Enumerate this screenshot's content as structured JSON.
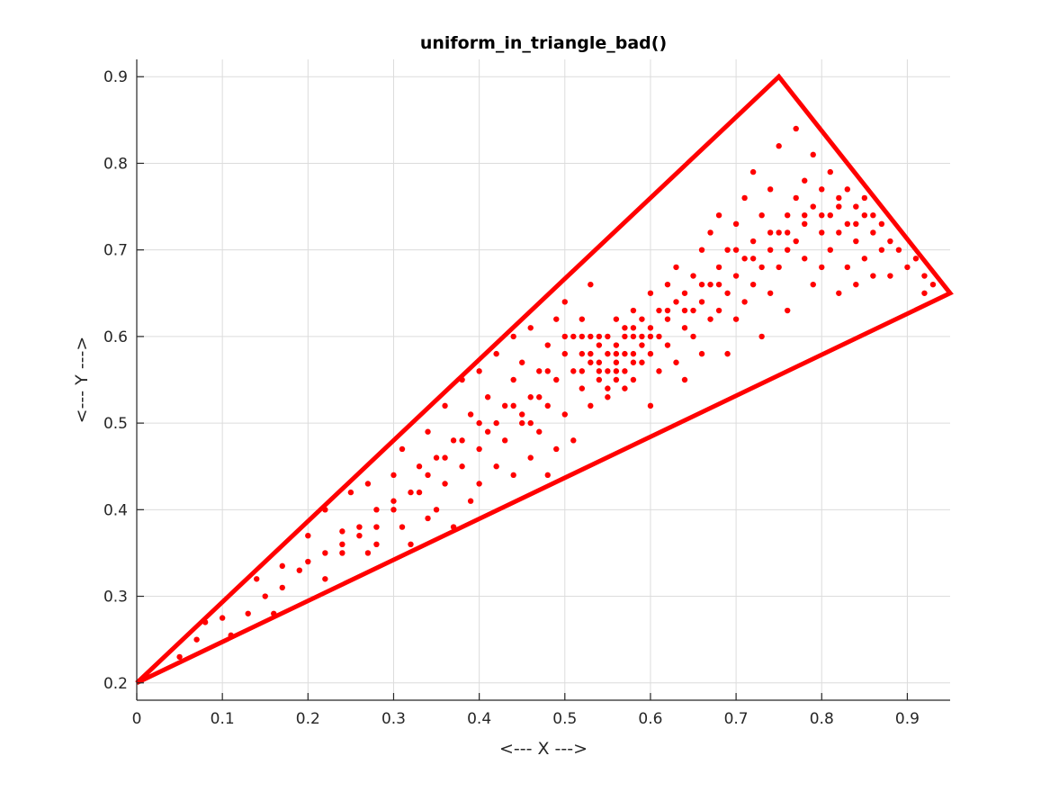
{
  "chart_data": {
    "type": "scatter",
    "title": "uniform_in_triangle_bad()",
    "xlabel": "<--- X --->",
    "ylabel": "<--- Y --->",
    "xlim": [
      0,
      0.95
    ],
    "ylim": [
      0.18,
      0.92
    ],
    "xticks": [
      0,
      0.1,
      0.2,
      0.3,
      0.4,
      0.5,
      0.6,
      0.7,
      0.8,
      0.9
    ],
    "yticks": [
      0.2,
      0.3,
      0.4,
      0.5,
      0.6,
      0.7,
      0.8,
      0.9
    ],
    "xtick_labels": [
      "0",
      "0.1",
      "0.2",
      "0.3",
      "0.4",
      "0.5",
      "0.6",
      "0.7",
      "0.8",
      "0.9"
    ],
    "ytick_labels": [
      "0.2",
      "0.3",
      "0.4",
      "0.5",
      "0.6",
      "0.7",
      "0.8",
      "0.9"
    ],
    "grid": true,
    "color": "#ff0000",
    "triangle": [
      [
        0,
        0.2
      ],
      [
        0.75,
        0.9
      ],
      [
        0.95,
        0.65
      ]
    ],
    "points": [
      [
        0.05,
        0.23
      ],
      [
        0.08,
        0.27
      ],
      [
        0.1,
        0.275
      ],
      [
        0.11,
        0.255
      ],
      [
        0.14,
        0.32
      ],
      [
        0.16,
        0.28
      ],
      [
        0.17,
        0.31
      ],
      [
        0.17,
        0.335
      ],
      [
        0.2,
        0.37
      ],
      [
        0.2,
        0.34
      ],
      [
        0.22,
        0.4
      ],
      [
        0.22,
        0.32
      ],
      [
        0.24,
        0.375
      ],
      [
        0.24,
        0.35
      ],
      [
        0.25,
        0.42
      ],
      [
        0.26,
        0.38
      ],
      [
        0.27,
        0.43
      ],
      [
        0.27,
        0.35
      ],
      [
        0.28,
        0.4
      ],
      [
        0.28,
        0.36
      ],
      [
        0.3,
        0.44
      ],
      [
        0.3,
        0.41
      ],
      [
        0.31,
        0.38
      ],
      [
        0.31,
        0.47
      ],
      [
        0.32,
        0.36
      ],
      [
        0.33,
        0.45
      ],
      [
        0.33,
        0.42
      ],
      [
        0.34,
        0.49
      ],
      [
        0.34,
        0.39
      ],
      [
        0.35,
        0.4
      ],
      [
        0.35,
        0.46
      ],
      [
        0.36,
        0.52
      ],
      [
        0.36,
        0.43
      ],
      [
        0.37,
        0.38
      ],
      [
        0.37,
        0.48
      ],
      [
        0.38,
        0.55
      ],
      [
        0.38,
        0.45
      ],
      [
        0.39,
        0.41
      ],
      [
        0.39,
        0.51
      ],
      [
        0.4,
        0.56
      ],
      [
        0.4,
        0.47
      ],
      [
        0.4,
        0.43
      ],
      [
        0.41,
        0.53
      ],
      [
        0.41,
        0.49
      ],
      [
        0.42,
        0.45
      ],
      [
        0.42,
        0.58
      ],
      [
        0.43,
        0.52
      ],
      [
        0.43,
        0.48
      ],
      [
        0.44,
        0.6
      ],
      [
        0.44,
        0.44
      ],
      [
        0.44,
        0.55
      ],
      [
        0.45,
        0.5
      ],
      [
        0.45,
        0.57
      ],
      [
        0.46,
        0.46
      ],
      [
        0.46,
        0.53
      ],
      [
        0.46,
        0.61
      ],
      [
        0.47,
        0.49
      ],
      [
        0.47,
        0.56
      ],
      [
        0.48,
        0.44
      ],
      [
        0.48,
        0.59
      ],
      [
        0.48,
        0.52
      ],
      [
        0.49,
        0.62
      ],
      [
        0.49,
        0.55
      ],
      [
        0.49,
        0.47
      ],
      [
        0.5,
        0.58
      ],
      [
        0.5,
        0.51
      ],
      [
        0.5,
        0.64
      ],
      [
        0.51,
        0.56
      ],
      [
        0.51,
        0.6
      ],
      [
        0.51,
        0.48
      ],
      [
        0.52,
        0.54
      ],
      [
        0.52,
        0.58
      ],
      [
        0.52,
        0.62
      ],
      [
        0.53,
        0.57
      ],
      [
        0.53,
        0.52
      ],
      [
        0.53,
        0.6
      ],
      [
        0.53,
        0.66
      ],
      [
        0.54,
        0.55
      ],
      [
        0.54,
        0.59
      ],
      [
        0.54,
        0.57
      ],
      [
        0.55,
        0.56
      ],
      [
        0.55,
        0.6
      ],
      [
        0.55,
        0.53
      ],
      [
        0.55,
        0.58
      ],
      [
        0.56,
        0.55
      ],
      [
        0.56,
        0.59
      ],
      [
        0.56,
        0.62
      ],
      [
        0.56,
        0.57
      ],
      [
        0.57,
        0.54
      ],
      [
        0.57,
        0.58
      ],
      [
        0.57,
        0.61
      ],
      [
        0.57,
        0.56
      ],
      [
        0.58,
        0.6
      ],
      [
        0.58,
        0.57
      ],
      [
        0.58,
        0.63
      ],
      [
        0.58,
        0.55
      ],
      [
        0.59,
        0.59
      ],
      [
        0.59,
        0.62
      ],
      [
        0.59,
        0.57
      ],
      [
        0.6,
        0.61
      ],
      [
        0.6,
        0.58
      ],
      [
        0.6,
        0.65
      ],
      [
        0.6,
        0.52
      ],
      [
        0.61,
        0.6
      ],
      [
        0.61,
        0.63
      ],
      [
        0.61,
        0.56
      ],
      [
        0.62,
        0.62
      ],
      [
        0.62,
        0.66
      ],
      [
        0.62,
        0.59
      ],
      [
        0.63,
        0.64
      ],
      [
        0.63,
        0.57
      ],
      [
        0.63,
        0.68
      ],
      [
        0.64,
        0.61
      ],
      [
        0.64,
        0.65
      ],
      [
        0.64,
        0.55
      ],
      [
        0.65,
        0.67
      ],
      [
        0.65,
        0.63
      ],
      [
        0.65,
        0.6
      ],
      [
        0.66,
        0.7
      ],
      [
        0.66,
        0.64
      ],
      [
        0.66,
        0.58
      ],
      [
        0.67,
        0.66
      ],
      [
        0.67,
        0.72
      ],
      [
        0.67,
        0.62
      ],
      [
        0.68,
        0.68
      ],
      [
        0.68,
        0.63
      ],
      [
        0.68,
        0.74
      ],
      [
        0.69,
        0.65
      ],
      [
        0.69,
        0.7
      ],
      [
        0.69,
        0.58
      ],
      [
        0.7,
        0.67
      ],
      [
        0.7,
        0.73
      ],
      [
        0.7,
        0.62
      ],
      [
        0.71,
        0.69
      ],
      [
        0.71,
        0.76
      ],
      [
        0.71,
        0.64
      ],
      [
        0.72,
        0.71
      ],
      [
        0.72,
        0.66
      ],
      [
        0.72,
        0.79
      ],
      [
        0.73,
        0.68
      ],
      [
        0.73,
        0.74
      ],
      [
        0.73,
        0.6
      ],
      [
        0.74,
        0.7
      ],
      [
        0.74,
        0.77
      ],
      [
        0.74,
        0.65
      ],
      [
        0.75,
        0.72
      ],
      [
        0.75,
        0.68
      ],
      [
        0.75,
        0.82
      ],
      [
        0.76,
        0.74
      ],
      [
        0.76,
        0.7
      ],
      [
        0.76,
        0.63
      ],
      [
        0.77,
        0.76
      ],
      [
        0.77,
        0.71
      ],
      [
        0.77,
        0.84
      ],
      [
        0.78,
        0.73
      ],
      [
        0.78,
        0.69
      ],
      [
        0.78,
        0.78
      ],
      [
        0.79,
        0.75
      ],
      [
        0.79,
        0.66
      ],
      [
        0.79,
        0.81
      ],
      [
        0.8,
        0.72
      ],
      [
        0.8,
        0.77
      ],
      [
        0.8,
        0.68
      ],
      [
        0.81,
        0.74
      ],
      [
        0.81,
        0.79
      ],
      [
        0.81,
        0.7
      ],
      [
        0.82,
        0.76
      ],
      [
        0.82,
        0.72
      ],
      [
        0.82,
        0.65
      ],
      [
        0.83,
        0.77
      ],
      [
        0.83,
        0.73
      ],
      [
        0.83,
        0.68
      ],
      [
        0.84,
        0.75
      ],
      [
        0.84,
        0.71
      ],
      [
        0.84,
        0.66
      ],
      [
        0.85,
        0.74
      ],
      [
        0.85,
        0.69
      ],
      [
        0.85,
        0.76
      ],
      [
        0.86,
        0.72
      ],
      [
        0.86,
        0.67
      ],
      [
        0.87,
        0.73
      ],
      [
        0.87,
        0.7
      ],
      [
        0.88,
        0.71
      ],
      [
        0.88,
        0.67
      ],
      [
        0.89,
        0.7
      ],
      [
        0.9,
        0.68
      ],
      [
        0.91,
        0.69
      ],
      [
        0.92,
        0.67
      ],
      [
        0.93,
        0.66
      ],
      [
        0.92,
        0.65
      ],
      [
        0.45,
        0.51
      ],
      [
        0.47,
        0.53
      ],
      [
        0.52,
        0.56
      ],
      [
        0.54,
        0.6
      ],
      [
        0.55,
        0.54
      ],
      [
        0.56,
        0.58
      ],
      [
        0.57,
        0.6
      ],
      [
        0.58,
        0.58
      ],
      [
        0.59,
        0.6
      ],
      [
        0.53,
        0.58
      ],
      [
        0.54,
        0.56
      ],
      [
        0.56,
        0.56
      ],
      [
        0.58,
        0.61
      ],
      [
        0.6,
        0.6
      ],
      [
        0.62,
        0.63
      ],
      [
        0.64,
        0.63
      ],
      [
        0.66,
        0.66
      ],
      [
        0.68,
        0.66
      ],
      [
        0.7,
        0.7
      ],
      [
        0.72,
        0.69
      ],
      [
        0.74,
        0.72
      ],
      [
        0.76,
        0.72
      ],
      [
        0.78,
        0.74
      ],
      [
        0.8,
        0.74
      ],
      [
        0.82,
        0.75
      ],
      [
        0.84,
        0.73
      ],
      [
        0.86,
        0.74
      ],
      [
        0.5,
        0.6
      ],
      [
        0.52,
        0.6
      ],
      [
        0.48,
        0.56
      ],
      [
        0.46,
        0.5
      ],
      [
        0.44,
        0.52
      ],
      [
        0.42,
        0.5
      ],
      [
        0.4,
        0.5
      ],
      [
        0.38,
        0.48
      ],
      [
        0.36,
        0.46
      ],
      [
        0.34,
        0.44
      ],
      [
        0.32,
        0.42
      ],
      [
        0.3,
        0.4
      ],
      [
        0.28,
        0.38
      ],
      [
        0.26,
        0.37
      ],
      [
        0.24,
        0.36
      ],
      [
        0.22,
        0.35
      ],
      [
        0.19,
        0.33
      ],
      [
        0.15,
        0.3
      ],
      [
        0.13,
        0.28
      ],
      [
        0.07,
        0.25
      ]
    ]
  }
}
